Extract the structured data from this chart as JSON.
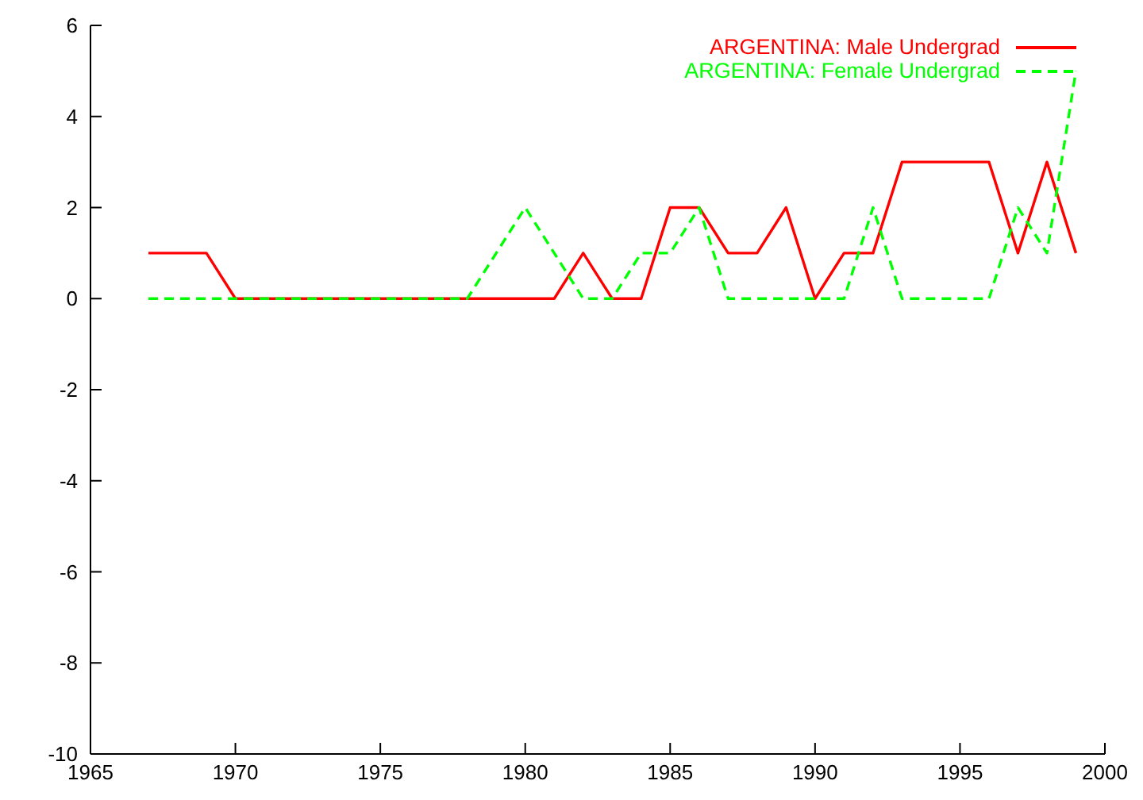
{
  "chart_data": {
    "type": "line",
    "x": [
      1967,
      1968,
      1969,
      1970,
      1971,
      1972,
      1973,
      1974,
      1975,
      1976,
      1977,
      1978,
      1979,
      1980,
      1981,
      1982,
      1983,
      1984,
      1985,
      1986,
      1987,
      1988,
      1989,
      1990,
      1991,
      1992,
      1993,
      1994,
      1995,
      1996,
      1997,
      1998,
      1999
    ],
    "series": [
      {
        "name": "ARGENTINA: Male Undergrad",
        "color": "#ff0000",
        "line_style": "solid",
        "values": [
          1,
          1,
          1,
          0,
          0,
          0,
          0,
          0,
          0,
          0,
          0,
          0,
          0,
          0,
          0,
          1,
          0,
          0,
          2,
          2,
          1,
          1,
          2,
          0,
          1,
          1,
          3,
          3,
          3,
          3,
          1,
          3,
          1
        ]
      },
      {
        "name": "ARGENTINA: Female Undergrad",
        "color": "#00ff00",
        "line_style": "dashed",
        "values": [
          0,
          0,
          0,
          0,
          0,
          0,
          0,
          0,
          0,
          0,
          0,
          0,
          1,
          2,
          1,
          0,
          0,
          1,
          1,
          2,
          0,
          0,
          0,
          0,
          0,
          2,
          0,
          0,
          0,
          0,
          2,
          1,
          5
        ]
      }
    ],
    "xlim": [
      1965,
      2000
    ],
    "xticks": [
      1965,
      1970,
      1975,
      1980,
      1985,
      1990,
      1995,
      2000
    ],
    "ylim": [
      -10,
      6
    ],
    "yticks": [
      -10,
      -8,
      -6,
      -4,
      -2,
      0,
      2,
      4,
      6
    ],
    "legend": "top right",
    "marker": "none"
  }
}
